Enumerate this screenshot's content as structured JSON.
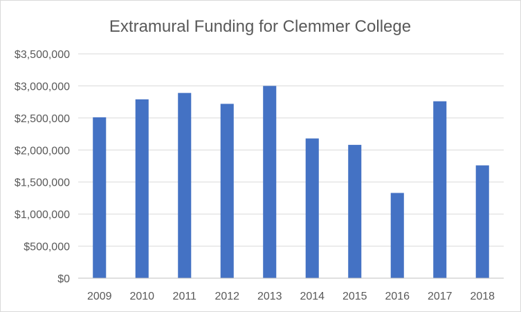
{
  "chart_data": {
    "type": "bar",
    "title": "Extramural Funding for Clemmer College",
    "xlabel": "",
    "ylabel": "",
    "categories": [
      "2009",
      "2010",
      "2011",
      "2012",
      "2013",
      "2014",
      "2015",
      "2016",
      "2017",
      "2018"
    ],
    "values": [
      2510000,
      2790000,
      2890000,
      2720000,
      3000000,
      2180000,
      2080000,
      1330000,
      2760000,
      1760000
    ],
    "ylim": [
      0,
      3500000
    ],
    "yticks": [
      0,
      500000,
      1000000,
      1500000,
      2000000,
      2500000,
      3000000,
      3500000
    ],
    "ytick_labels": [
      "$0",
      "$500,000",
      "$1,000,000",
      "$1,500,000",
      "$2,000,000",
      "$2,500,000",
      "$3,000,000",
      "$3,500,000"
    ],
    "grid": true,
    "legend": "none",
    "bar_color": "#4472c4"
  }
}
